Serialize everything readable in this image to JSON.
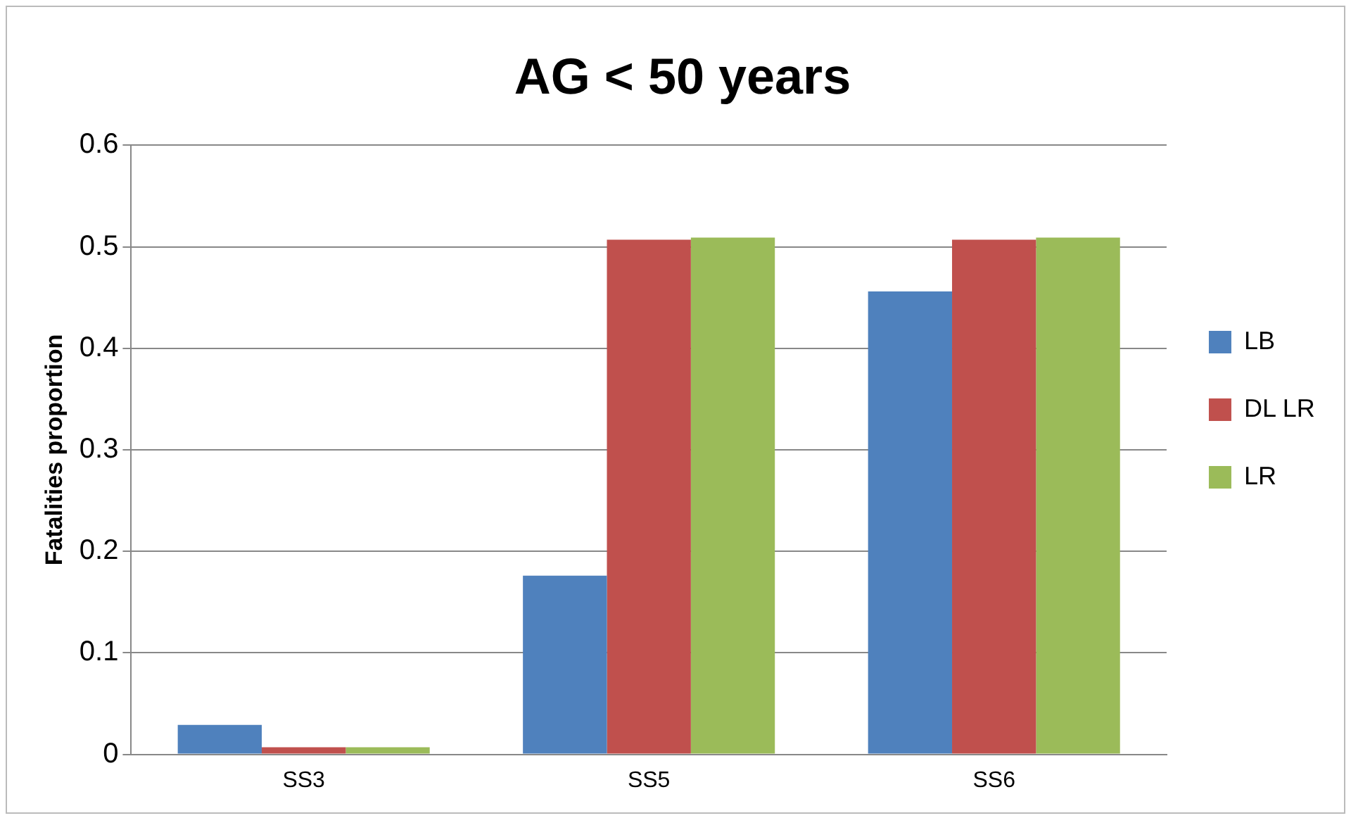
{
  "chart_data": {
    "type": "bar",
    "title": "AG < 50 years",
    "ylabel": "Fatalities proportion",
    "categories": [
      "SS3",
      "SS5",
      "SS6"
    ],
    "series": [
      {
        "name": "LB",
        "color": "#4f81bd",
        "values": [
          0.029,
          0.176,
          0.456
        ]
      },
      {
        "name": "DL LR",
        "color": "#c0504d",
        "values": [
          0.007,
          0.507,
          0.507
        ]
      },
      {
        "name": "LR",
        "color": "#9bbb59",
        "values": [
          0.007,
          0.509,
          0.509
        ]
      }
    ],
    "ylim": [
      0,
      0.6
    ],
    "yticks": [
      0,
      0.1,
      0.2,
      0.3,
      0.4,
      0.5,
      0.6
    ],
    "grid": "y",
    "legend": "right"
  }
}
